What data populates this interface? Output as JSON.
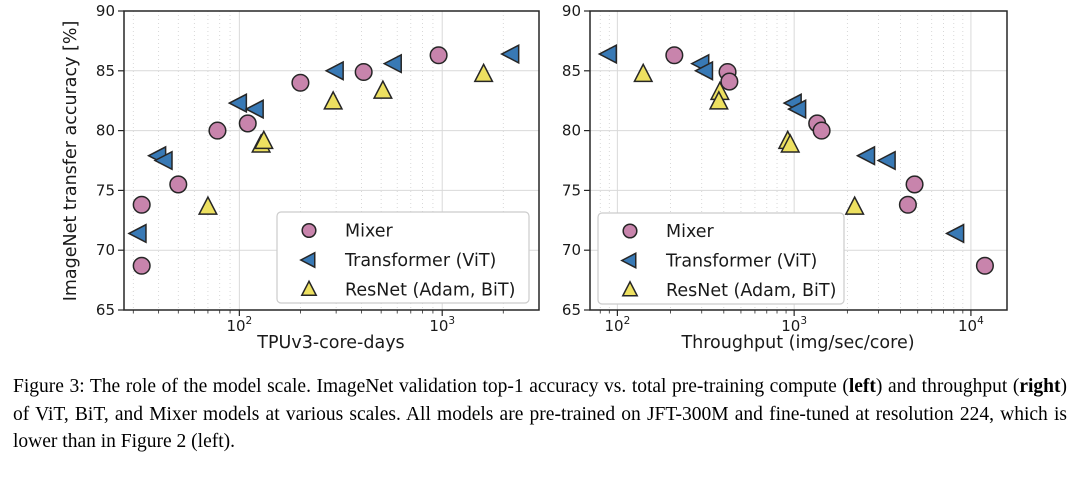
{
  "figure": {
    "caption_segments": [
      {
        "text": "Figure 3: The role of the model scale. ImageNet validation top-1 accuracy vs. total pre-training compute (",
        "bold": false
      },
      {
        "text": "left",
        "bold": true
      },
      {
        "text": ") and throughput (",
        "bold": false
      },
      {
        "text": "right",
        "bold": true
      },
      {
        "text": ") of ViT, BiT, and Mixer models at various scales. All models are pre-trained on JFT-300M and fine-tuned at resolution 224, which is lower than in Figure 2 (left).",
        "bold": false
      }
    ]
  },
  "colors": {
    "background": "#ffffff",
    "frame": "#262626",
    "grid_major": "#d9d9d9",
    "grid_minor": "#cfcfcf",
    "text": "#1a1a1a",
    "marker_edge": "#262626",
    "legend_border": "#cccccc",
    "legend_fill": "#ffffff",
    "mixer": "#c884ac",
    "vit": "#3879b5",
    "resnet": "#ede060"
  },
  "chart_data": [
    {
      "type": "scatter",
      "title": "",
      "xlabel": "TPUv3-core-days",
      "ylabel": "ImageNet transfer accuracy [%]",
      "xscale": "log",
      "xlim": [
        27,
        3000
      ],
      "ylim": [
        65,
        90
      ],
      "yticks": [
        65,
        70,
        75,
        80,
        85,
        90
      ],
      "xticks": [
        {
          "value": 100,
          "base": "10",
          "exponent": "2"
        },
        {
          "value": 1000,
          "base": "10",
          "exponent": "3"
        }
      ],
      "grid": true,
      "legend_position": "lower right",
      "series": [
        {
          "name": "Mixer",
          "marker": "circle",
          "color": "#c884ac",
          "points": [
            [
              33,
              68.7
            ],
            [
              33,
              73.8
            ],
            [
              50,
              75.5
            ],
            [
              78,
              80.0
            ],
            [
              110,
              80.6
            ],
            [
              200,
              84.0
            ],
            [
              410,
              84.9
            ],
            [
              960,
              86.3
            ]
          ]
        },
        {
          "name": "Transformer (ViT)",
          "marker": "triangle-left",
          "color": "#3879b5",
          "points": [
            [
              32,
              71.4
            ],
            [
              40,
              77.9
            ],
            [
              43,
              77.5
            ],
            [
              100,
              82.3
            ],
            [
              121,
              81.8
            ],
            [
              300,
              85.0
            ],
            [
              580,
              85.6
            ],
            [
              2200,
              86.4
            ]
          ]
        },
        {
          "name": "ResNet (Adam, BiT)",
          "marker": "triangle-up",
          "color": "#ede060",
          "points": [
            [
              70,
              73.6
            ],
            [
              128,
              78.8
            ],
            [
              132,
              79.1
            ],
            [
              290,
              82.4
            ],
            [
              510,
              83.3
            ],
            [
              1600,
              84.7
            ]
          ]
        }
      ]
    },
    {
      "type": "scatter",
      "title": "",
      "xlabel": "Throughput (img/sec/core)",
      "ylabel": "",
      "xscale": "log",
      "xlim": [
        70,
        16000
      ],
      "ylim": [
        65,
        90
      ],
      "yticks": [
        65,
        70,
        75,
        80,
        85,
        90
      ],
      "xticks": [
        {
          "value": 100,
          "base": "10",
          "exponent": "2"
        },
        {
          "value": 1000,
          "base": "10",
          "exponent": "3"
        },
        {
          "value": 10000,
          "base": "10",
          "exponent": "4"
        }
      ],
      "grid": true,
      "legend_position": "lower left",
      "series": [
        {
          "name": "Mixer",
          "marker": "circle",
          "color": "#c884ac",
          "points": [
            [
              210,
              86.3
            ],
            [
              420,
              84.9
            ],
            [
              430,
              84.1
            ],
            [
              1350,
              80.6
            ],
            [
              1430,
              80.0
            ],
            [
              4800,
              75.5
            ],
            [
              4400,
              73.8
            ],
            [
              12000,
              68.7
            ]
          ]
        },
        {
          "name": "Transformer (ViT)",
          "marker": "triangle-left",
          "color": "#3879b5",
          "points": [
            [
              90,
              86.4
            ],
            [
              300,
              85.6
            ],
            [
              315,
              85.0
            ],
            [
              1000,
              82.3
            ],
            [
              1060,
              81.8
            ],
            [
              2600,
              77.9
            ],
            [
              3400,
              77.5
            ],
            [
              8300,
              71.4
            ]
          ]
        },
        {
          "name": "ResNet (Adam, BiT)",
          "marker": "triangle-up",
          "color": "#ede060",
          "points": [
            [
              140,
              84.7
            ],
            [
              380,
              83.2
            ],
            [
              375,
              82.4
            ],
            [
              920,
              79.1
            ],
            [
              950,
              78.8
            ],
            [
              2200,
              73.6
            ]
          ]
        }
      ]
    }
  ]
}
